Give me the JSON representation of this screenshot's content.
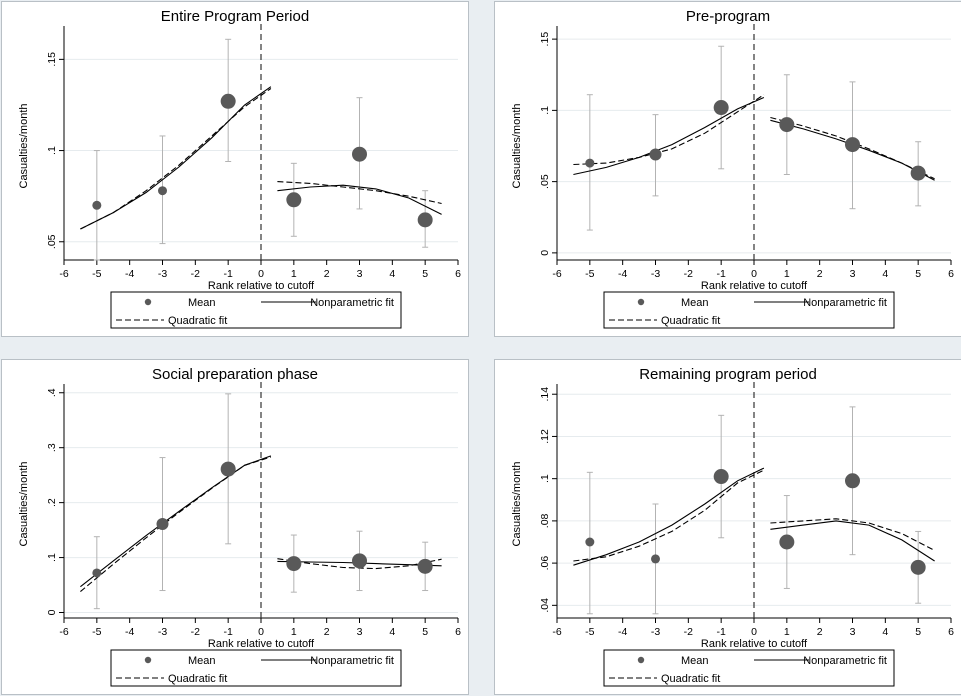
{
  "chart_data": [
    {
      "type": "scatter",
      "title": "Entire Program Period",
      "xlabel": "Rank relative to cutoff",
      "ylabel": "Casualties/month",
      "xlim": [
        -6,
        6
      ],
      "ylim": [
        0.04,
        0.165
      ],
      "xticks": [
        "-6",
        "-5",
        "-4",
        "-3",
        "-2",
        "-1",
        "0",
        "1",
        "2",
        "3",
        "4",
        "5",
        "6"
      ],
      "yticks": [
        {
          "v": 0.05,
          "label": ".05"
        },
        {
          "v": 0.1,
          "label": ".1"
        },
        {
          "v": 0.15,
          "label": ".15"
        }
      ],
      "cutoff": 0,
      "points": [
        {
          "x": -5,
          "y": 0.07,
          "lo": 0.04,
          "hi": 0.1,
          "size": "small"
        },
        {
          "x": -3,
          "y": 0.078,
          "lo": 0.049,
          "hi": 0.108,
          "size": "small"
        },
        {
          "x": -1,
          "y": 0.127,
          "lo": 0.094,
          "hi": 0.161,
          "size": "large"
        },
        {
          "x": 1,
          "y": 0.073,
          "lo": 0.053,
          "hi": 0.093,
          "size": "large"
        },
        {
          "x": 3,
          "y": 0.098,
          "lo": 0.068,
          "hi": 0.129,
          "size": "large"
        },
        {
          "x": 5,
          "y": 0.062,
          "lo": 0.047,
          "hi": 0.078,
          "size": "large"
        }
      ],
      "series": [
        {
          "name": "Nonparametric fit",
          "style": "solid",
          "left": [
            [
              -5.5,
              0.057
            ],
            [
              -4.5,
              0.066
            ],
            [
              -3.5,
              0.077
            ],
            [
              -2.5,
              0.091
            ],
            [
              -1.5,
              0.107
            ],
            [
              -0.5,
              0.125
            ],
            [
              0.3,
              0.135
            ]
          ],
          "right": [
            [
              0.5,
              0.078
            ],
            [
              1.5,
              0.08
            ],
            [
              2.5,
              0.081
            ],
            [
              3.5,
              0.079
            ],
            [
              4.5,
              0.074
            ],
            [
              5.5,
              0.065
            ]
          ]
        },
        {
          "name": "Quadratic fit",
          "style": "dash",
          "left": [
            [
              -5.5,
              0.057
            ],
            [
              -4.5,
              0.066
            ],
            [
              -3.5,
              0.078
            ],
            [
              -2.5,
              0.092
            ],
            [
              -1.5,
              0.108
            ],
            [
              -0.5,
              0.124
            ],
            [
              0.3,
              0.134
            ]
          ],
          "right": [
            [
              0.5,
              0.083
            ],
            [
              1.5,
              0.082
            ],
            [
              2.5,
              0.08
            ],
            [
              3.5,
              0.078
            ],
            [
              4.5,
              0.075
            ],
            [
              5.5,
              0.071
            ]
          ]
        }
      ],
      "legend": {
        "mean": "Mean",
        "nonparametric": "Nonparametric fit",
        "quadratic": "Quadratic fit",
        "position": "bottom"
      }
    },
    {
      "type": "scatter",
      "title": "Pre-program",
      "xlabel": "Rank relative to cutoff",
      "ylabel": "Casualties/month",
      "xlim": [
        -6,
        6
      ],
      "ylim": [
        -0.005,
        0.155
      ],
      "xticks": [
        "-6",
        "-5",
        "-4",
        "-3",
        "-2",
        "-1",
        "0",
        "1",
        "2",
        "3",
        "4",
        "5",
        "6"
      ],
      "yticks": [
        {
          "v": 0,
          "label": "0"
        },
        {
          "v": 0.05,
          "label": ".05"
        },
        {
          "v": 0.1,
          "label": ".1"
        },
        {
          "v": 0.15,
          "label": ".15"
        }
      ],
      "cutoff": 0,
      "points": [
        {
          "x": -5,
          "y": 0.063,
          "lo": 0.016,
          "hi": 0.111,
          "size": "small"
        },
        {
          "x": -3,
          "y": 0.069,
          "lo": 0.04,
          "hi": 0.097,
          "size": "medium"
        },
        {
          "x": -1,
          "y": 0.102,
          "lo": 0.059,
          "hi": 0.145,
          "size": "large"
        },
        {
          "x": 1,
          "y": 0.09,
          "lo": 0.055,
          "hi": 0.125,
          "size": "large"
        },
        {
          "x": 3,
          "y": 0.076,
          "lo": 0.031,
          "hi": 0.12,
          "size": "large"
        },
        {
          "x": 5,
          "y": 0.056,
          "lo": 0.033,
          "hi": 0.078,
          "size": "large"
        }
      ],
      "series": [
        {
          "name": "Nonparametric fit",
          "style": "solid",
          "left": [
            [
              -5.5,
              0.055
            ],
            [
              -4.5,
              0.06
            ],
            [
              -3.5,
              0.067
            ],
            [
              -2.5,
              0.076
            ],
            [
              -1.5,
              0.088
            ],
            [
              -0.5,
              0.101
            ],
            [
              0.3,
              0.109
            ]
          ],
          "right": [
            [
              0.5,
              0.093
            ],
            [
              1.5,
              0.087
            ],
            [
              2.5,
              0.08
            ],
            [
              3.5,
              0.072
            ],
            [
              4.5,
              0.063
            ],
            [
              5.5,
              0.051
            ]
          ]
        },
        {
          "name": "Quadratic fit",
          "style": "dash",
          "left": [
            [
              -5.5,
              0.062
            ],
            [
              -4.5,
              0.063
            ],
            [
              -3.5,
              0.067
            ],
            [
              -2.5,
              0.073
            ],
            [
              -1.5,
              0.084
            ],
            [
              -0.5,
              0.099
            ],
            [
              0.3,
              0.111
            ]
          ],
          "right": [
            [
              0.5,
              0.095
            ],
            [
              1.5,
              0.089
            ],
            [
              2.5,
              0.082
            ],
            [
              3.5,
              0.073
            ],
            [
              4.5,
              0.063
            ],
            [
              5.5,
              0.052
            ]
          ]
        }
      ],
      "legend": {
        "mean": "Mean",
        "nonparametric": "Nonparametric fit",
        "quadratic": "Quadratic fit",
        "position": "bottom"
      }
    },
    {
      "type": "scatter",
      "title": "Social preparation phase",
      "xlabel": "Rank relative to cutoff",
      "ylabel": "Casualties/month",
      "xlim": [
        -6,
        6
      ],
      "ylim": [
        -0.01,
        0.405
      ],
      "xticks": [
        "-6",
        "-5",
        "-4",
        "-3",
        "-2",
        "-1",
        "0",
        "1",
        "2",
        "3",
        "4",
        "5",
        "6"
      ],
      "yticks": [
        {
          "v": 0,
          "label": "0"
        },
        {
          "v": 0.1,
          "label": ".1"
        },
        {
          "v": 0.2,
          "label": ".2"
        },
        {
          "v": 0.3,
          "label": ".3"
        },
        {
          "v": 0.4,
          "label": ".4"
        }
      ],
      "cutoff": 0,
      "points": [
        {
          "x": -5,
          "y": 0.072,
          "lo": 0.007,
          "hi": 0.138,
          "size": "small"
        },
        {
          "x": -3,
          "y": 0.161,
          "lo": 0.04,
          "hi": 0.282,
          "size": "medium"
        },
        {
          "x": -1,
          "y": 0.261,
          "lo": 0.125,
          "hi": 0.398,
          "size": "large"
        },
        {
          "x": 1,
          "y": 0.089,
          "lo": 0.037,
          "hi": 0.141,
          "size": "large"
        },
        {
          "x": 3,
          "y": 0.094,
          "lo": 0.04,
          "hi": 0.148,
          "size": "large"
        },
        {
          "x": 5,
          "y": 0.084,
          "lo": 0.04,
          "hi": 0.128,
          "size": "large"
        }
      ],
      "series": [
        {
          "name": "Nonparametric fit",
          "style": "solid",
          "left": [
            [
              -5.5,
              0.047
            ],
            [
              -4.5,
              0.094
            ],
            [
              -3.5,
              0.14
            ],
            [
              -2.5,
              0.184
            ],
            [
              -1.5,
              0.227
            ],
            [
              -0.5,
              0.268
            ],
            [
              0.3,
              0.285
            ]
          ],
          "right": [
            [
              0.5,
              0.093
            ],
            [
              1.5,
              0.092
            ],
            [
              2.5,
              0.091
            ],
            [
              3.5,
              0.089
            ],
            [
              4.5,
              0.087
            ],
            [
              5.5,
              0.085
            ]
          ]
        },
        {
          "name": "Quadratic fit",
          "style": "dash",
          "left": [
            [
              -5.5,
              0.038
            ],
            [
              -4.5,
              0.088
            ],
            [
              -3.5,
              0.136
            ],
            [
              -2.5,
              0.182
            ],
            [
              -1.5,
              0.226
            ],
            [
              -0.5,
              0.268
            ],
            [
              0.3,
              0.283
            ]
          ],
          "right": [
            [
              0.5,
              0.098
            ],
            [
              1.5,
              0.089
            ],
            [
              2.5,
              0.082
            ],
            [
              3.5,
              0.08
            ],
            [
              4.5,
              0.085
            ],
            [
              5.5,
              0.097
            ]
          ]
        }
      ],
      "legend": {
        "mean": "Mean",
        "nonparametric": "Nonparametric fit",
        "quadratic": "Quadratic fit",
        "position": "bottom"
      }
    },
    {
      "type": "scatter",
      "title": "Remaining program period",
      "xlabel": "Rank relative to cutoff",
      "ylabel": "Casualties/month",
      "xlim": [
        -6,
        6
      ],
      "ylim": [
        0.034,
        0.142
      ],
      "xticks": [
        "-6",
        "-5",
        "-4",
        "-3",
        "-2",
        "-1",
        "0",
        "1",
        "2",
        "3",
        "4",
        "5",
        "6"
      ],
      "yticks": [
        {
          "v": 0.04,
          "label": ".04"
        },
        {
          "v": 0.06,
          "label": ".06"
        },
        {
          "v": 0.08,
          "label": ".08"
        },
        {
          "v": 0.1,
          "label": ".1"
        },
        {
          "v": 0.12,
          "label": ".12"
        },
        {
          "v": 0.14,
          "label": ".14"
        }
      ],
      "cutoff": 0,
      "points": [
        {
          "x": -5,
          "y": 0.07,
          "lo": 0.036,
          "hi": 0.103,
          "size": "small"
        },
        {
          "x": -3,
          "y": 0.062,
          "lo": 0.036,
          "hi": 0.088,
          "size": "small"
        },
        {
          "x": -1,
          "y": 0.101,
          "lo": 0.072,
          "hi": 0.13,
          "size": "large"
        },
        {
          "x": 1,
          "y": 0.07,
          "lo": 0.048,
          "hi": 0.092,
          "size": "large"
        },
        {
          "x": 3,
          "y": 0.099,
          "lo": 0.064,
          "hi": 0.134,
          "size": "large"
        },
        {
          "x": 5,
          "y": 0.058,
          "lo": 0.041,
          "hi": 0.075,
          "size": "large"
        }
      ],
      "series": [
        {
          "name": "Nonparametric fit",
          "style": "solid",
          "left": [
            [
              -5.5,
              0.059
            ],
            [
              -4.5,
              0.064
            ],
            [
              -3.5,
              0.07
            ],
            [
              -2.5,
              0.078
            ],
            [
              -1.5,
              0.088
            ],
            [
              -0.5,
              0.099
            ],
            [
              0.3,
              0.105
            ]
          ],
          "right": [
            [
              0.5,
              0.076
            ],
            [
              1.5,
              0.078
            ],
            [
              2.5,
              0.08
            ],
            [
              3.5,
              0.078
            ],
            [
              4.5,
              0.071
            ],
            [
              5.5,
              0.061
            ]
          ]
        },
        {
          "name": "Quadratic fit",
          "style": "dash",
          "left": [
            [
              -5.5,
              0.061
            ],
            [
              -4.5,
              0.063
            ],
            [
              -3.5,
              0.068
            ],
            [
              -2.5,
              0.075
            ],
            [
              -1.5,
              0.085
            ],
            [
              -0.5,
              0.098
            ],
            [
              0.3,
              0.104
            ]
          ],
          "right": [
            [
              0.5,
              0.079
            ],
            [
              1.5,
              0.08
            ],
            [
              2.5,
              0.081
            ],
            [
              3.5,
              0.079
            ],
            [
              4.5,
              0.074
            ],
            [
              5.5,
              0.066
            ]
          ]
        }
      ],
      "legend": {
        "mean": "Mean",
        "nonparametric": "Nonparametric fit",
        "quadratic": "Quadratic fit",
        "position": "bottom"
      }
    }
  ]
}
